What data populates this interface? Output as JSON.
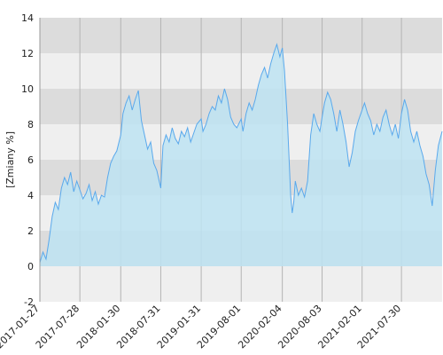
{
  "chart_data": {
    "type": "area",
    "title": "",
    "xlabel": "",
    "ylabel": "[Zmiany %]",
    "ylim": [
      -2,
      14
    ],
    "yticks": [
      -2,
      0,
      2,
      4,
      6,
      8,
      10,
      12,
      14
    ],
    "xlim": [
      "2017-01-27",
      "2022-01-31"
    ],
    "xticks": [
      "2017-01-27",
      "2017-07-28",
      "2018-01-30",
      "2018-07-31",
      "2019-01-31",
      "2019-08-01",
      "2020-02-04",
      "2020-08-03",
      "2021-02-01",
      "2021-07-30"
    ],
    "grid": true,
    "legend": "none",
    "colors": {
      "line": "#5aa9ec",
      "fill": "#bde3f2",
      "fill_above": "#a9cfde",
      "band_dark": "#dcdcdc",
      "band_light": "#efefef"
    },
    "series": [
      {
        "x": [
          "2017-01-27",
          "2017-02-10",
          "2017-02-24",
          "2017-03-10",
          "2017-03-24",
          "2017-04-07",
          "2017-04-21",
          "2017-05-05",
          "2017-05-19",
          "2017-06-02",
          "2017-06-16",
          "2017-06-30",
          "2017-07-14",
          "2017-07-28",
          "2017-08-11",
          "2017-08-25",
          "2017-09-08",
          "2017-09-22",
          "2017-10-06",
          "2017-10-20",
          "2017-11-03",
          "2017-11-17",
          "2017-12-01",
          "2017-12-15",
          "2017-12-29",
          "2018-01-12",
          "2018-01-30",
          "2018-02-09",
          "2018-02-23",
          "2018-03-09",
          "2018-03-23",
          "2018-04-06",
          "2018-04-20",
          "2018-05-04",
          "2018-05-18",
          "2018-06-01",
          "2018-06-15",
          "2018-06-29",
          "2018-07-13",
          "2018-07-31",
          "2018-08-10",
          "2018-08-24",
          "2018-09-07",
          "2018-09-21",
          "2018-10-05",
          "2018-10-19",
          "2018-11-02",
          "2018-11-16",
          "2018-11-30",
          "2018-12-14",
          "2018-12-28",
          "2019-01-11",
          "2019-01-31",
          "2019-02-08",
          "2019-02-22",
          "2019-03-08",
          "2019-03-22",
          "2019-04-05",
          "2019-04-19",
          "2019-05-03",
          "2019-05-17",
          "2019-05-31",
          "2019-06-14",
          "2019-06-28",
          "2019-07-12",
          "2019-08-01",
          "2019-08-09",
          "2019-08-23",
          "2019-09-06",
          "2019-09-20",
          "2019-10-04",
          "2019-10-18",
          "2019-11-01",
          "2019-11-15",
          "2019-11-29",
          "2019-12-13",
          "2019-12-27",
          "2020-01-10",
          "2020-01-24",
          "2020-02-04",
          "2020-02-14",
          "2020-02-28",
          "2020-03-06",
          "2020-03-13",
          "2020-03-20",
          "2020-03-27",
          "2020-04-03",
          "2020-04-17",
          "2020-05-01",
          "2020-05-15",
          "2020-05-29",
          "2020-06-12",
          "2020-06-26",
          "2020-07-10",
          "2020-07-24",
          "2020-08-03",
          "2020-08-14",
          "2020-08-28",
          "2020-09-11",
          "2020-09-25",
          "2020-10-09",
          "2020-10-23",
          "2020-11-06",
          "2020-11-20",
          "2020-12-04",
          "2020-12-18",
          "2021-01-01",
          "2021-01-15",
          "2021-02-01",
          "2021-02-12",
          "2021-02-26",
          "2021-03-12",
          "2021-03-26",
          "2021-04-09",
          "2021-04-23",
          "2021-05-07",
          "2021-05-21",
          "2021-06-04",
          "2021-06-18",
          "2021-07-02",
          "2021-07-16",
          "2021-07-30",
          "2021-08-13",
          "2021-08-27",
          "2021-09-10",
          "2021-09-24",
          "2021-10-08",
          "2021-10-22",
          "2021-11-05",
          "2021-11-19",
          "2021-12-03",
          "2021-12-17",
          "2021-12-31",
          "2022-01-14",
          "2022-01-31"
        ],
        "values": [
          0.2,
          0.8,
          0.4,
          1.5,
          2.8,
          3.6,
          3.2,
          4.4,
          5.0,
          4.6,
          5.3,
          4.2,
          4.8,
          4.3,
          3.8,
          4.1,
          4.6,
          3.7,
          4.2,
          3.5,
          4.0,
          3.9,
          5.0,
          5.8,
          6.2,
          6.5,
          7.4,
          8.6,
          9.2,
          9.6,
          8.8,
          9.4,
          9.9,
          8.2,
          7.4,
          6.6,
          7.0,
          5.8,
          5.4,
          4.4,
          6.8,
          7.4,
          7.0,
          7.8,
          7.2,
          6.9,
          7.6,
          7.3,
          7.8,
          7.0,
          7.5,
          8.0,
          8.3,
          7.6,
          8.0,
          8.6,
          9.0,
          8.8,
          9.6,
          9.2,
          10.0,
          9.4,
          8.4,
          8.0,
          7.8,
          8.3,
          7.6,
          8.6,
          9.2,
          8.8,
          9.4,
          10.2,
          10.8,
          11.2,
          10.6,
          11.4,
          12.0,
          12.5,
          11.8,
          12.3,
          11.0,
          8.0,
          6.0,
          4.0,
          3.0,
          3.6,
          4.8,
          4.0,
          4.4,
          3.9,
          4.8,
          7.4,
          8.6,
          8.0,
          7.6,
          8.4,
          9.2,
          9.8,
          9.4,
          8.6,
          7.6,
          8.8,
          8.0,
          7.0,
          5.6,
          6.4,
          7.6,
          8.2,
          8.8,
          9.2,
          8.6,
          8.2,
          7.4,
          8.0,
          7.6,
          8.4,
          8.8,
          8.0,
          7.4,
          8.0,
          7.2,
          8.6,
          9.4,
          8.8,
          7.6,
          7.0,
          7.6,
          6.8,
          6.2,
          5.2,
          4.6,
          3.4,
          5.4,
          6.8,
          7.6
        ]
      }
    ]
  }
}
